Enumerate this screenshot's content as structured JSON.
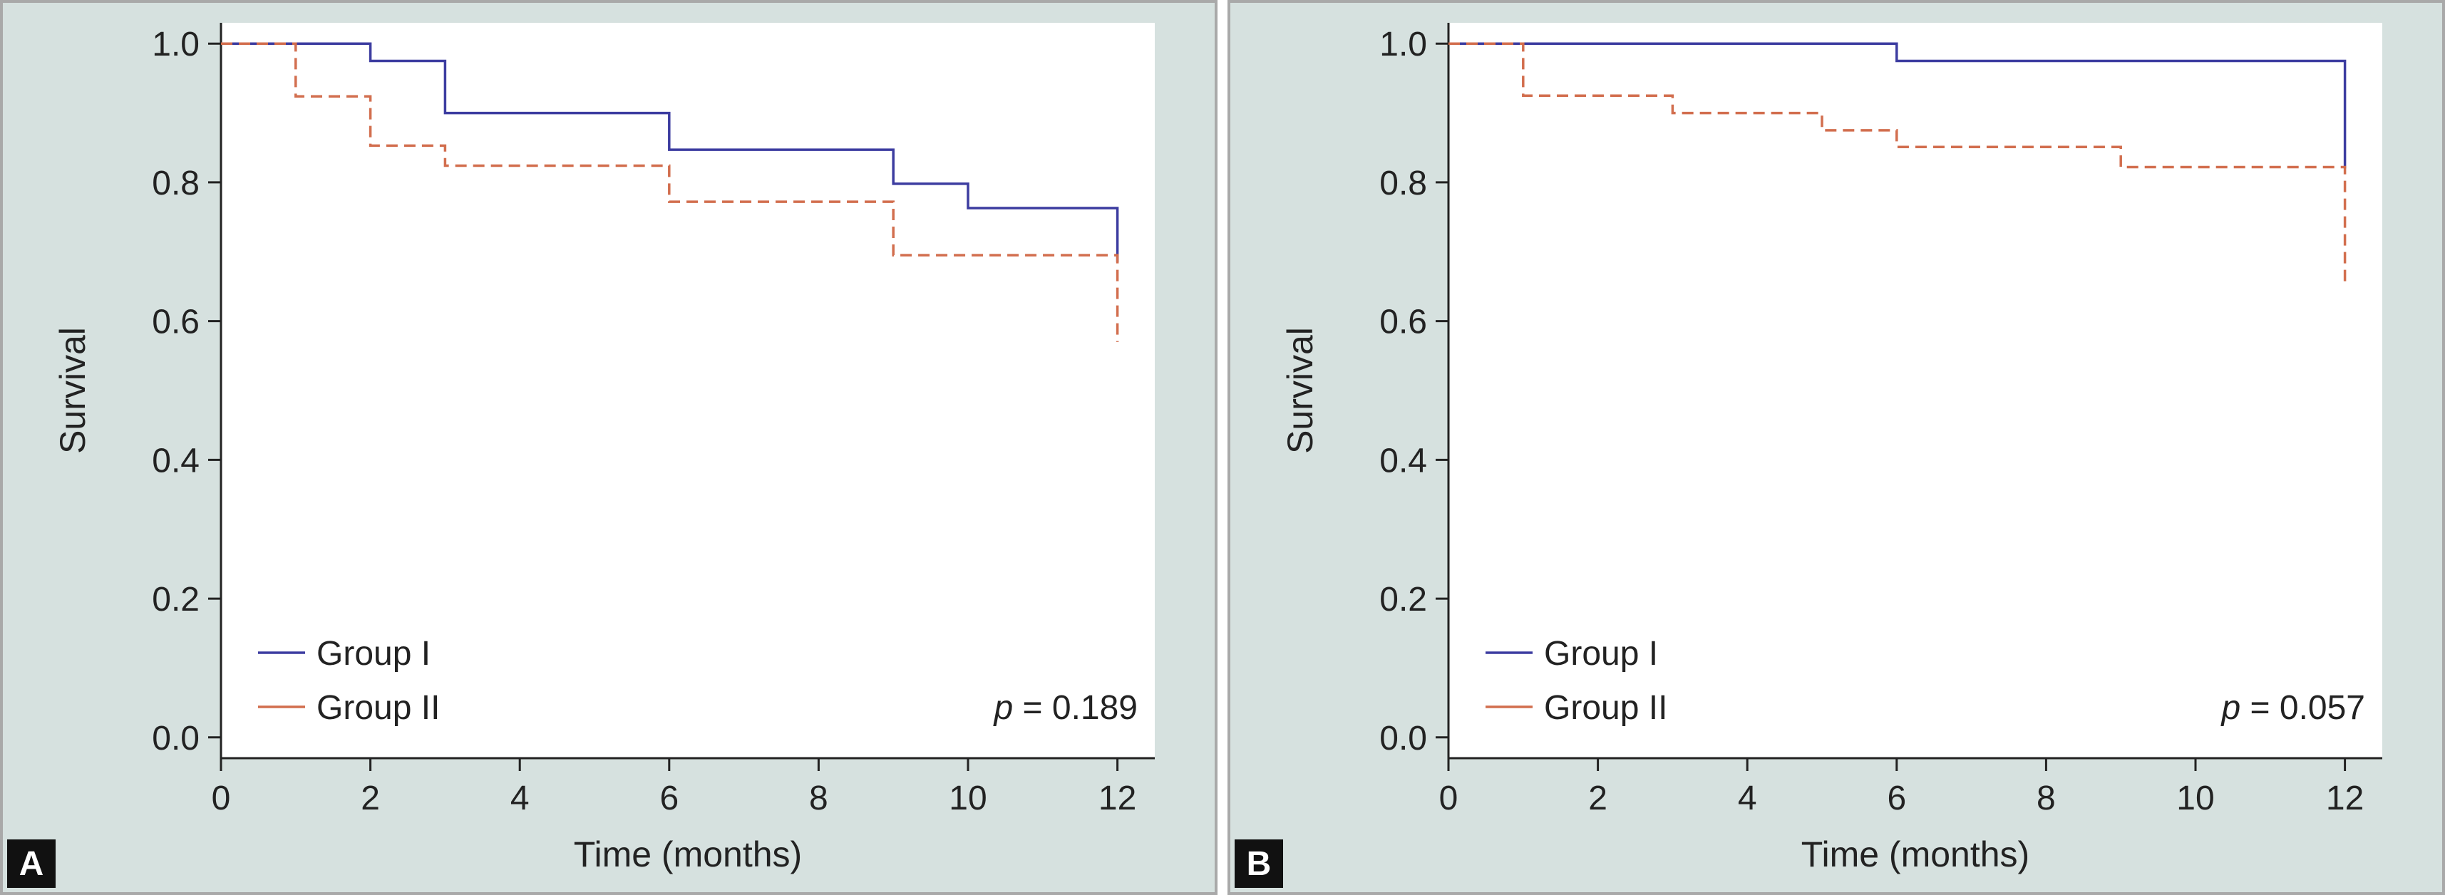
{
  "colors": {
    "panel_bg": "#d6e1df",
    "plot_bg": "#ffffff",
    "axis": "#222222",
    "group1": "#3c3ca0",
    "group2": "#d26e4e"
  },
  "chart_data": [
    {
      "type": "line",
      "panel_label": "A",
      "xlabel": "Time (months)",
      "ylabel": "Survival",
      "xlim": [
        0,
        12.5
      ],
      "ylim": [
        -0.03,
        1.03
      ],
      "xticks": [
        0,
        2,
        4,
        6,
        8,
        10,
        12
      ],
      "yticks": [
        0.0,
        0.2,
        0.4,
        0.6,
        0.8,
        1.0
      ],
      "x_tick_labels": [
        "0",
        "2",
        "4",
        "6",
        "8",
        "10",
        "12"
      ],
      "y_tick_labels": [
        "0.0",
        "0.2",
        "0.4",
        "0.6",
        "0.8",
        "1.0"
      ],
      "grid": false,
      "legend_position": "bottom-left",
      "annotation": {
        "p_label": "p",
        "text": " = 0.189",
        "position": "bottom-right"
      },
      "series": [
        {
          "name": "Group I",
          "style": "solid",
          "x": [
            0,
            2,
            3,
            6,
            9,
            10,
            12
          ],
          "y": [
            1.0,
            0.975,
            0.9,
            0.847,
            0.798,
            0.763,
            0.685
          ]
        },
        {
          "name": "Group II",
          "style": "dashed",
          "x": [
            0,
            1,
            2,
            3,
            6,
            9,
            12
          ],
          "y": [
            1.0,
            0.924,
            0.853,
            0.824,
            0.772,
            0.695,
            0.57
          ]
        }
      ]
    },
    {
      "type": "line",
      "panel_label": "B",
      "xlabel": "Time (months)",
      "ylabel": "Survival",
      "xlim": [
        0,
        12.5
      ],
      "ylim": [
        -0.03,
        1.03
      ],
      "xticks": [
        0,
        2,
        4,
        6,
        8,
        10,
        12
      ],
      "yticks": [
        0.0,
        0.2,
        0.4,
        0.6,
        0.8,
        1.0
      ],
      "x_tick_labels": [
        "0",
        "2",
        "4",
        "6",
        "8",
        "10",
        "12"
      ],
      "y_tick_labels": [
        "0.0",
        "0.2",
        "0.4",
        "0.6",
        "0.8",
        "1.0"
      ],
      "grid": false,
      "legend_position": "bottom-left",
      "annotation": {
        "p_label": "p",
        "text": " = 0.057",
        "position": "bottom-right"
      },
      "series": [
        {
          "name": "Group I",
          "style": "solid",
          "x": [
            0,
            6,
            12
          ],
          "y": [
            1.0,
            0.975,
            0.82
          ]
        },
        {
          "name": "Group II",
          "style": "dashed",
          "x": [
            0,
            1,
            3,
            5,
            6,
            9,
            12
          ],
          "y": [
            1.0,
            0.925,
            0.9,
            0.875,
            0.851,
            0.822,
            0.655
          ]
        }
      ]
    }
  ]
}
